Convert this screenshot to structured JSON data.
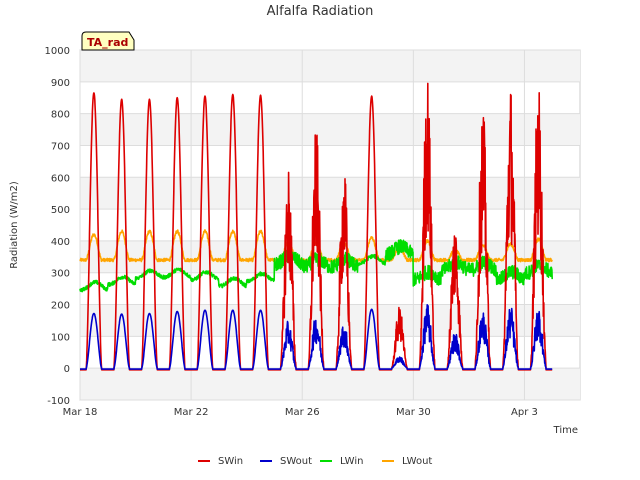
{
  "chart_data": {
    "type": "line",
    "title": "Alfalfa Radiation",
    "xlabel": "Time",
    "ylabel": "Radiation (W/m2)",
    "tag": "TA_rad",
    "xlim_days": [
      0,
      18
    ],
    "ylim": [
      -100,
      1000
    ],
    "yticks": [
      -100,
      0,
      100,
      200,
      300,
      400,
      500,
      600,
      700,
      800,
      900,
      1000
    ],
    "xticks": [
      {
        "day": 0,
        "label": "Mar 18"
      },
      {
        "day": 4,
        "label": "Mar 22"
      },
      {
        "day": 8,
        "label": "Mar 26"
      },
      {
        "day": 12,
        "label": "Mar 30"
      },
      {
        "day": 16,
        "label": "Apr 3"
      }
    ],
    "grid": true,
    "legend_placement": "bottom",
    "series": [
      {
        "name": "SWin",
        "color": "#dd0000",
        "daily_peaks": [
          865,
          845,
          845,
          850,
          855,
          860,
          858,
          645,
          760,
          650,
          855,
          195,
          940,
          470,
          835,
          900,
          905
        ]
      },
      {
        "name": "SWout",
        "color": "#0000cc",
        "daily_peaks": [
          172,
          170,
          172,
          178,
          182,
          182,
          182,
          150,
          170,
          145,
          185,
          40,
          205,
          115,
          185,
          200,
          200
        ]
      },
      {
        "name": "LWin",
        "color": "#00dd00",
        "daily_mean": [
          258,
          275,
          295,
          298,
          290,
          270,
          285,
          340,
          330,
          330,
          340,
          370,
          290,
          320,
          320,
          290,
          310
        ]
      },
      {
        "name": "LWout",
        "color": "#ffa500",
        "daily_peaks": [
          420,
          430,
          430,
          430,
          430,
          430,
          430,
          395,
          395,
          395,
          410,
          380,
          400,
          370,
          385,
          390,
          405
        ]
      }
    ]
  }
}
